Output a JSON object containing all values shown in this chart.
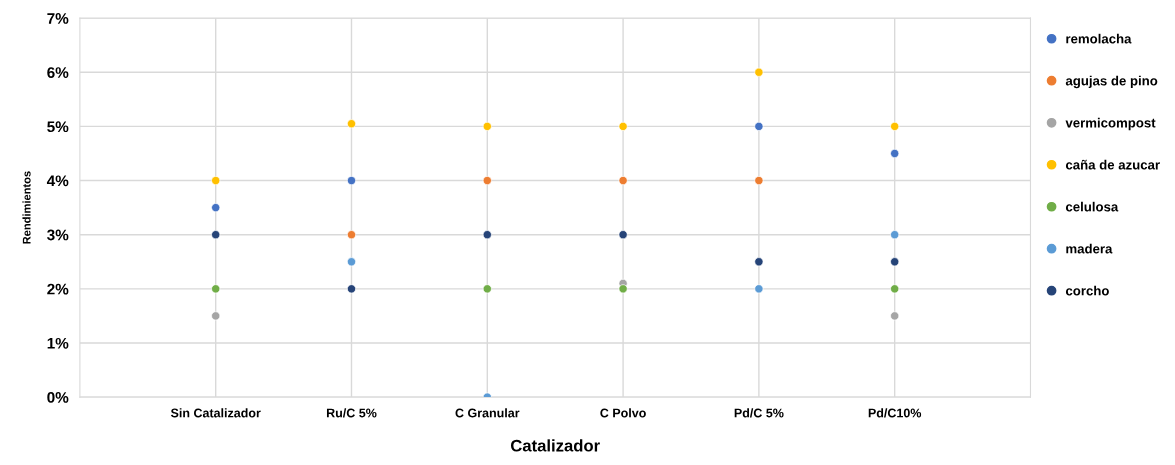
{
  "chart_data": {
    "type": "scatter",
    "xlabel": "Catalizador",
    "ylabel": "Rendimientos",
    "categories": [
      "Sin Catalizador",
      "Ru/C 5%",
      "C Granular",
      "C Polvo",
      "Pd/C 5%",
      "Pd/C10%"
    ],
    "series": [
      {
        "name": "remolacha",
        "color": "#4472c4",
        "values": [
          3.5,
          4,
          null,
          null,
          5,
          4.5
        ]
      },
      {
        "name": "agujas de pino",
        "color": "#ed7d31",
        "values": [
          null,
          3,
          4,
          4,
          4,
          null
        ]
      },
      {
        "name": "vermicompost",
        "color": "#a5a5a5",
        "values": [
          1.5,
          null,
          null,
          2.1,
          null,
          1.5
        ]
      },
      {
        "name": "caña de azucar",
        "color": "#ffc000",
        "values": [
          4,
          5.05,
          5,
          5,
          6,
          5
        ]
      },
      {
        "name": "celulosa",
        "color": "#70ad47",
        "values": [
          2,
          null,
          2,
          2,
          null,
          2
        ]
      },
      {
        "name": "madera",
        "color": "#5b9bd5",
        "values": [
          null,
          2.5,
          0,
          null,
          2,
          3
        ]
      },
      {
        "name": "corcho",
        "color": "#264478",
        "values": [
          3,
          2,
          3,
          3,
          2.5,
          2.5
        ]
      }
    ],
    "ylim": [
      0,
      7
    ],
    "yticks": [
      {
        "value": 0,
        "label": "0%"
      },
      {
        "value": 1,
        "label": "1%"
      },
      {
        "value": 2,
        "label": "2%"
      },
      {
        "value": 3,
        "label": "3%"
      },
      {
        "value": 4,
        "label": "4%"
      },
      {
        "value": 5,
        "label": "5%"
      },
      {
        "value": 6,
        "label": "6%"
      },
      {
        "value": 7,
        "label": "7%"
      }
    ],
    "grid": true,
    "legend": "right",
    "marker": "circle"
  }
}
